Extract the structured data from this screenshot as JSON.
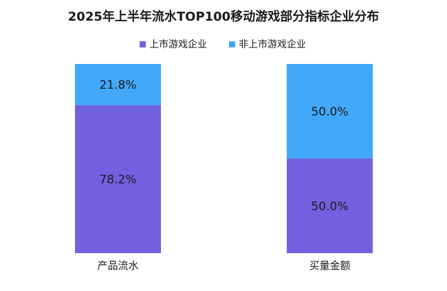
{
  "chart_data": {
    "type": "bar",
    "stacked": true,
    "percent": true,
    "title": "2025年上半年流水TOP100移动游戏部分指标企业分布",
    "categories": [
      "产品流水",
      "买量金额"
    ],
    "series": [
      {
        "name": "上市游戏企业",
        "values": [
          78.2,
          50.0
        ],
        "labels": [
          "78.2%",
          "50.0%"
        ],
        "color": "#7360E0"
      },
      {
        "name": "非上市游戏企业",
        "values": [
          21.8,
          50.0
        ],
        "labels": [
          "21.8%",
          "50.0%"
        ],
        "color": "#42A8FA"
      }
    ],
    "ylim": [
      0,
      100
    ],
    "grid": false,
    "legend_position": "top-center",
    "xlabel": "",
    "ylabel": ""
  }
}
